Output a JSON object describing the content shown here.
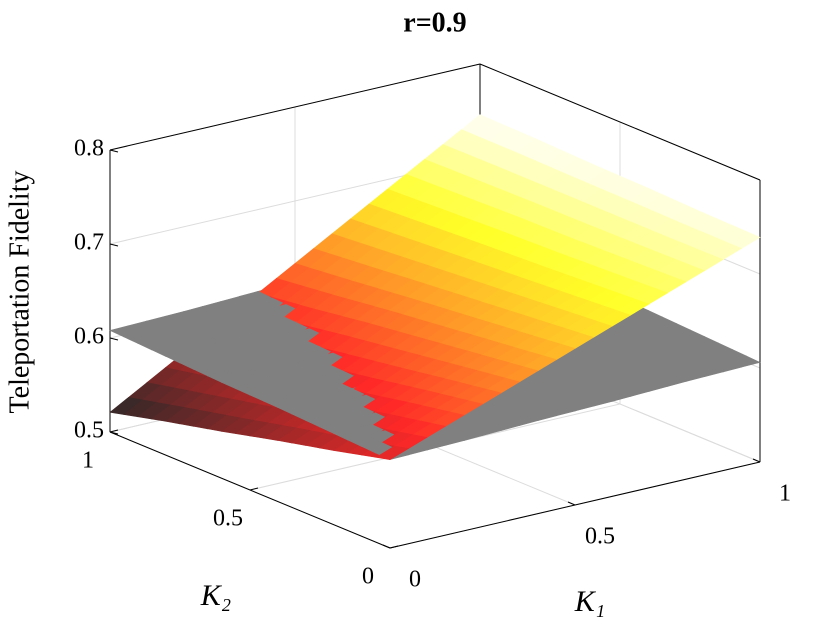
{
  "chart_data": {
    "type": "surface",
    "title": "r=0.9",
    "xlabel": "K₁",
    "ylabel": "K₂",
    "zlabel": "Teleportation Fidelity",
    "x": [
      0,
      0.2,
      0.4,
      0.6,
      0.8,
      1
    ],
    "y": [
      0,
      0.2,
      0.4,
      0.6,
      0.8,
      1
    ],
    "xlim": [
      0,
      1
    ],
    "ylim": [
      0,
      1
    ],
    "zlim": [
      0.5,
      0.8
    ],
    "xticks": [
      0,
      0.5,
      1
    ],
    "yticks": [
      0,
      0.5,
      1
    ],
    "zticks": [
      0.5,
      0.6,
      0.7,
      0.8
    ],
    "grid": true,
    "series": [
      {
        "colormap": "hot",
        "values": [
          [
            0.594,
            0.623,
            0.652,
            0.681,
            0.71,
            0.739
          ],
          [
            0.579,
            0.612,
            0.644,
            0.676,
            0.708,
            0.74
          ],
          [
            0.565,
            0.6,
            0.636,
            0.671,
            0.706,
            0.742
          ],
          [
            0.55,
            0.589,
            0.628,
            0.666,
            0.705,
            0.743
          ],
          [
            0.536,
            0.577,
            0.619,
            0.661,
            0.703,
            0.745
          ],
          [
            0.521,
            0.566,
            0.611,
            0.656,
            0.701,
            0.746
          ]
        ]
      },
      {
        "color": "#808080",
        "values": [
          [
            0.594,
            0.596,
            0.599,
            0.601,
            0.604,
            0.606
          ],
          [
            0.597,
            0.599,
            0.602,
            0.604,
            0.607,
            0.609
          ],
          [
            0.6,
            0.602,
            0.604,
            0.607,
            0.609,
            0.612
          ],
          [
            0.602,
            0.605,
            0.607,
            0.61,
            0.612,
            0.614
          ],
          [
            0.605,
            0.608,
            0.61,
            0.613,
            0.615,
            0.618
          ],
          [
            0.608,
            0.61,
            0.613,
            0.615,
            0.618,
            0.62
          ]
        ]
      }
    ]
  }
}
